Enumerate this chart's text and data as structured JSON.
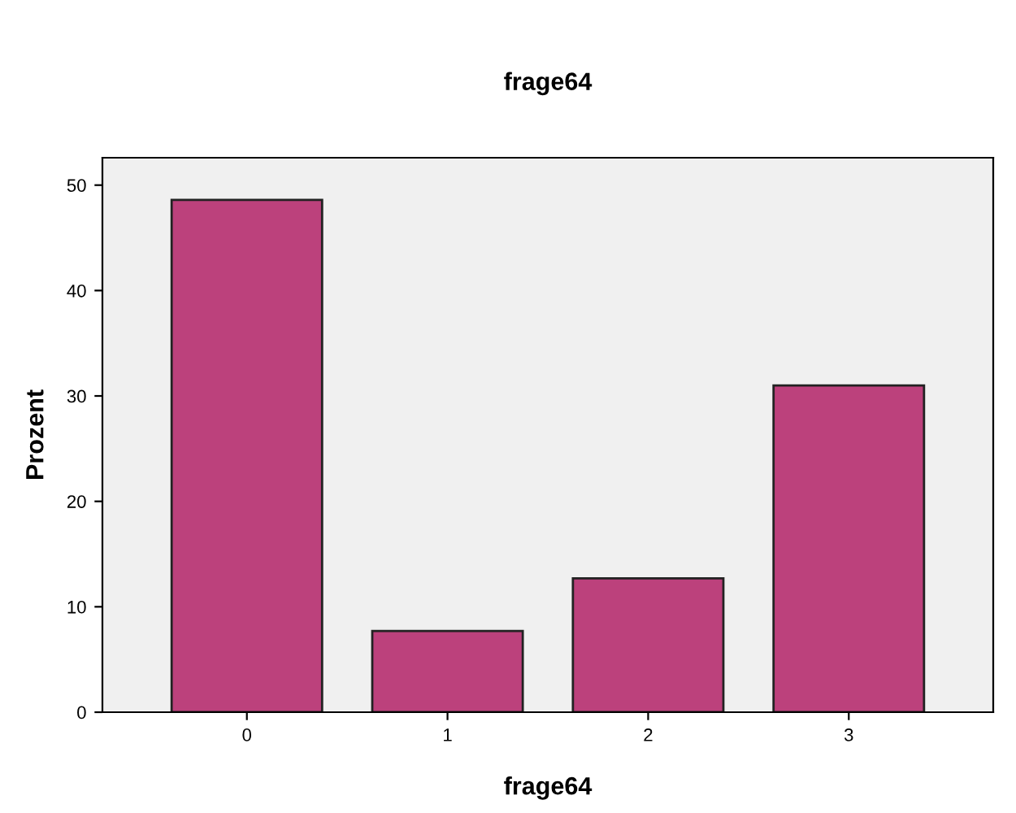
{
  "chart_data": {
    "type": "bar",
    "title": "frage64",
    "xlabel": "frage64",
    "ylabel": "Prozent",
    "categories": [
      "0",
      "1",
      "2",
      "3"
    ],
    "values": [
      48.6,
      7.7,
      12.7,
      31.0
    ],
    "color": "#bc417c",
    "ylim": [
      0,
      52.6
    ],
    "yticks": [
      0,
      10,
      20,
      30,
      40,
      50
    ],
    "grid": false,
    "legend": false
  }
}
